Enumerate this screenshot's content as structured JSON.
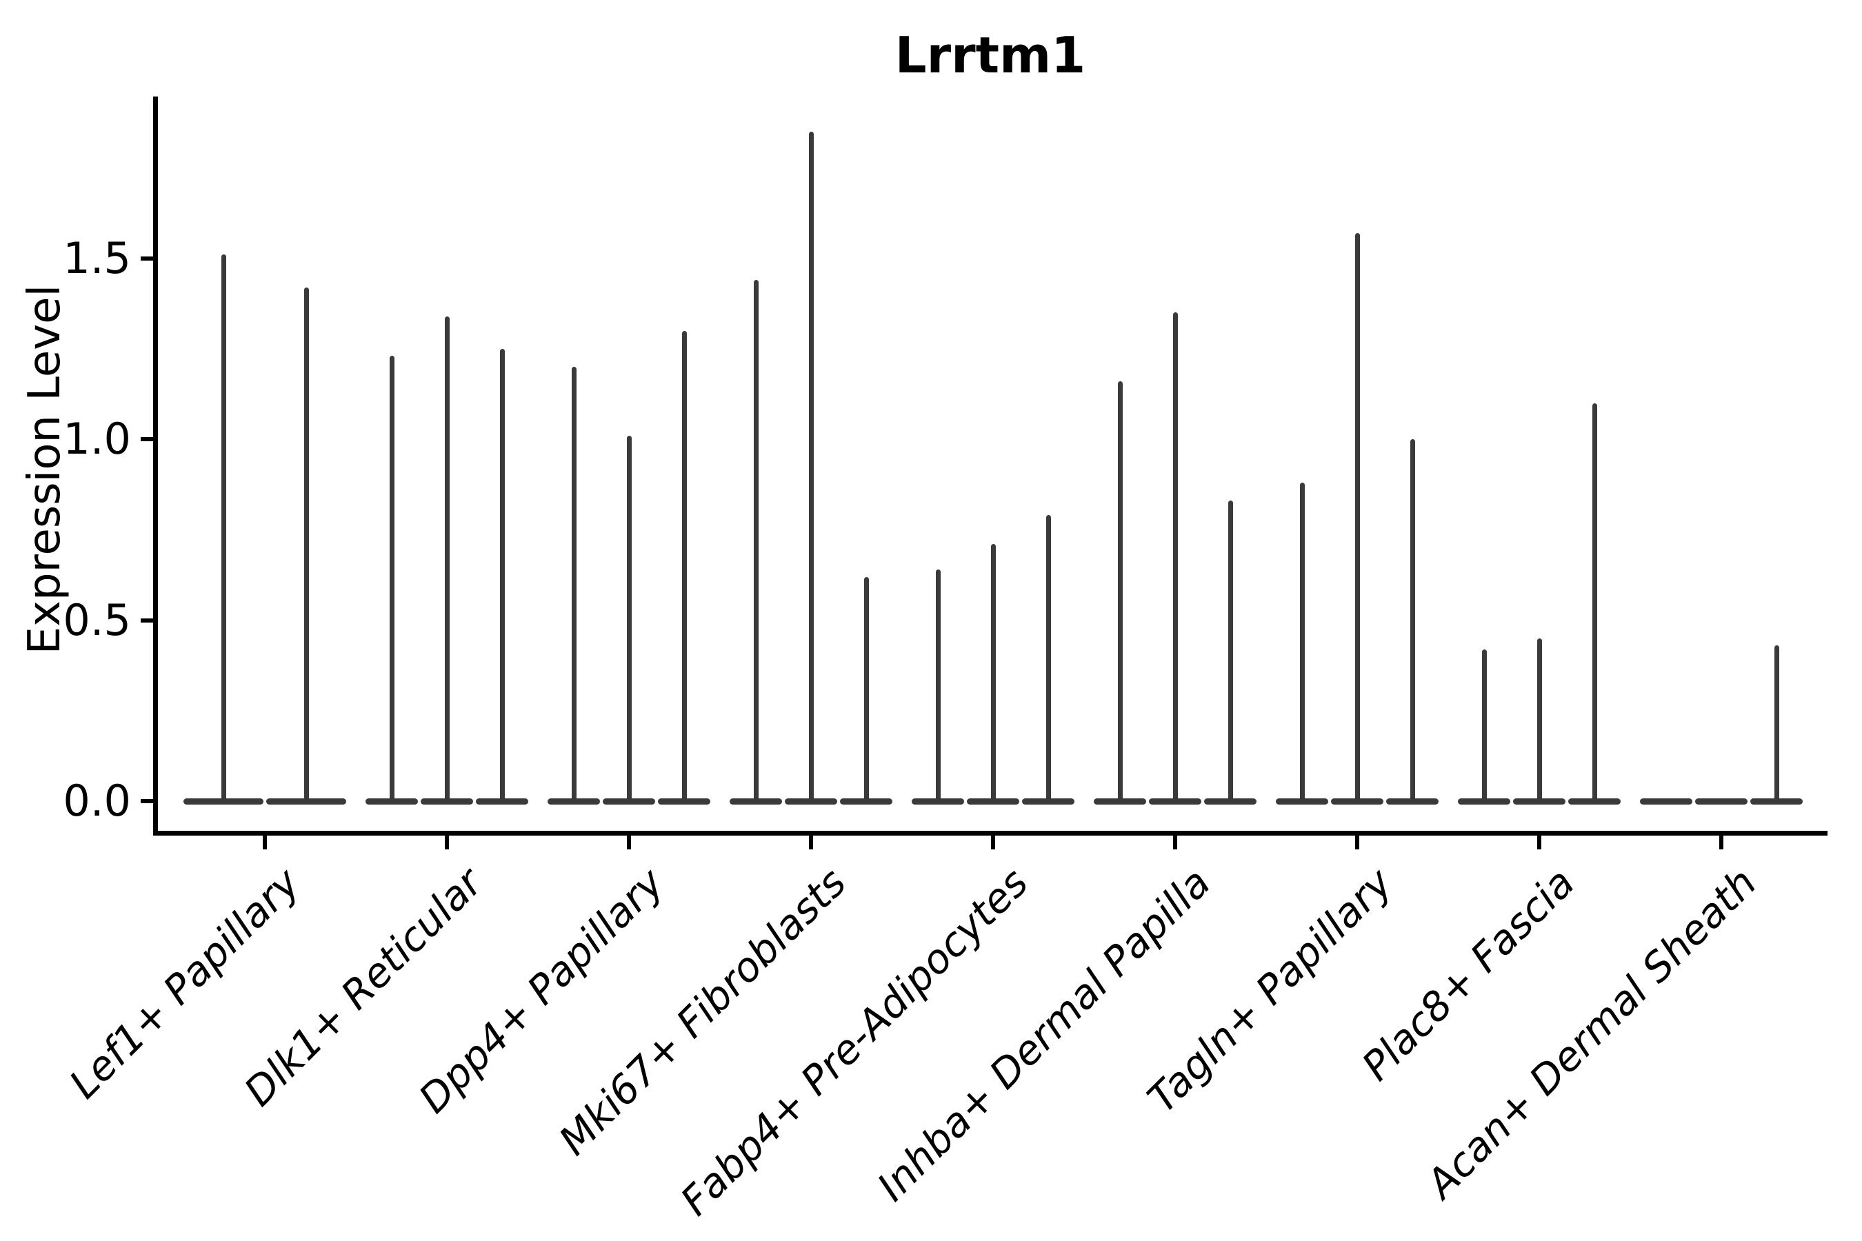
{
  "chart_data": {
    "type": "violin",
    "title": "Lrrtm1",
    "xlabel": "",
    "ylabel": "Expression Level",
    "yticks": [
      "0.0",
      "0.5",
      "1.0",
      "1.5"
    ],
    "ytick_values": [
      0.0,
      0.5,
      1.0,
      1.5
    ],
    "ylim": [
      -0.09,
      1.95
    ],
    "grid": false,
    "legend": "none",
    "spines": [
      "left",
      "bottom"
    ],
    "axis_color": "#000000",
    "violin_color": "#3a3a3a",
    "categories": [
      "Lef1+ Papillary",
      "Dlk1+ Reticular",
      "Dpp4+ Papillary",
      "Mki67+ Fibroblasts",
      "Fabp4+ Pre-Adipocytes",
      "Inhba+ Dermal Papilla",
      "Tagln+ Papillary",
      "Plac8+ Fascia",
      "Acan+ Dermal Sheath"
    ],
    "series_description": "Each category shows thin violins: bulk of density at expression 0 (flat base) with a needle spike up to the max expression value.",
    "violin_max_values": [
      [
        1.51,
        1.42
      ],
      [
        1.23,
        1.34,
        1.25
      ],
      [
        1.2,
        1.01,
        1.3
      ],
      [
        1.44,
        1.85,
        0.62
      ],
      [
        0.64,
        0.71,
        0.79
      ],
      [
        1.16,
        1.35,
        0.83
      ],
      [
        0.88,
        1.57,
        1.0
      ],
      [
        0.42,
        0.45,
        1.1
      ],
      [
        0.0,
        0.0,
        0.43
      ]
    ]
  }
}
